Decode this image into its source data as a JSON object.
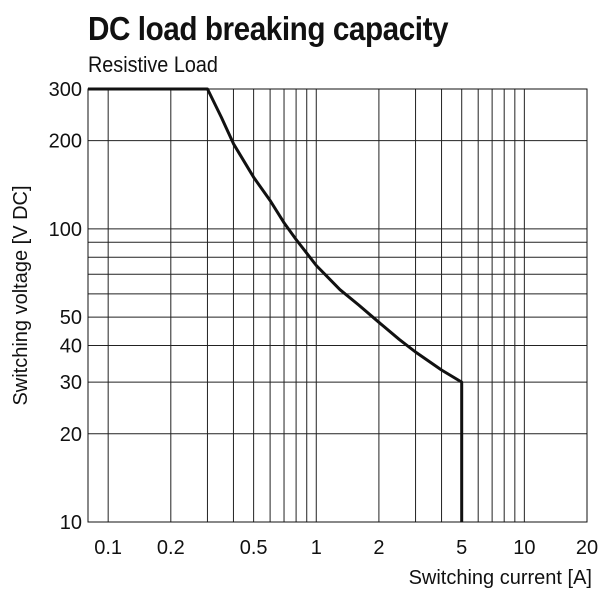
{
  "chart_data": {
    "type": "line",
    "title": "DC load breaking capacity",
    "subtitle": "Resistive Load",
    "xlabel": "Switching current [A]",
    "ylabel": "Switching voltage [V DC]",
    "x_scale": "log",
    "y_scale": "log",
    "xlim": [
      0.08,
      20
    ],
    "ylim": [
      10,
      300
    ],
    "grid": true,
    "x_gridlines": [
      0.1,
      0.2,
      0.3,
      0.4,
      0.5,
      0.6,
      0.7,
      0.8,
      0.9,
      1,
      2,
      3,
      4,
      5,
      6,
      7,
      8,
      9,
      10
    ],
    "y_gridlines": [
      10,
      20,
      30,
      40,
      50,
      60,
      70,
      80,
      90,
      100,
      200,
      300
    ],
    "x_tick_labels": [
      "0.1",
      "0.2",
      "0.5",
      "1",
      "2",
      "5",
      "10",
      "20"
    ],
    "y_tick_labels": [
      "300",
      "200",
      "100",
      "50",
      "40",
      "30",
      "20",
      "10"
    ],
    "series": [
      {
        "x": [
          0.08,
          0.3,
          0.35,
          0.4,
          0.5,
          0.6,
          0.7,
          0.8,
          1.0,
          1.3,
          1.6,
          2.0,
          2.5,
          3.0,
          4.0,
          5.0,
          5.0
        ],
        "y": [
          300,
          300,
          240,
          195,
          150,
          125,
          105,
          92,
          75,
          62,
          55,
          48,
          42,
          38,
          33,
          30,
          10
        ]
      }
    ]
  }
}
